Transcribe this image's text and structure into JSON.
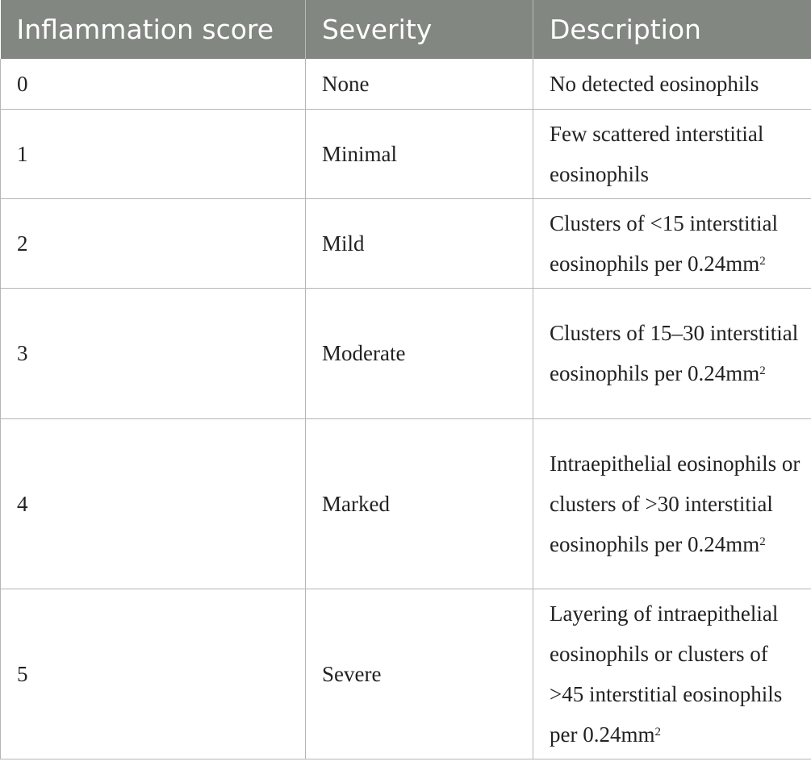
{
  "table": {
    "headers": [
      "Inflammation score",
      "Severity",
      "Description"
    ],
    "rows": [
      {
        "score": "0",
        "severity": "None",
        "description": "No detected eosinophils",
        "sup": ""
      },
      {
        "score": "1",
        "severity": "Minimal",
        "description": "Few scattered interstitial eosinophils",
        "sup": ""
      },
      {
        "score": "2",
        "severity": "Mild",
        "description": "Clusters of <15 interstitial eosinophils per 0.24mm",
        "sup": "2"
      },
      {
        "score": "3",
        "severity": "Moderate",
        "description": "Clusters of 15–30 interstitial eosinophils per 0.24mm",
        "sup": "2"
      },
      {
        "score": "4",
        "severity": "Marked",
        "description": "Intraepithelial eosinophils or clusters of >30 interstitial eosinophils per 0.24mm",
        "sup": "2"
      },
      {
        "score": "5",
        "severity": "Severe",
        "description": "Layering of intraepithelial eosinophils or clusters of >45 interstitial eosinophils per 0.24mm",
        "sup": "2"
      }
    ]
  },
  "colors": {
    "header_background": "#838782",
    "header_text": "#ffffff",
    "grid_lines": "#b5b5b5"
  }
}
